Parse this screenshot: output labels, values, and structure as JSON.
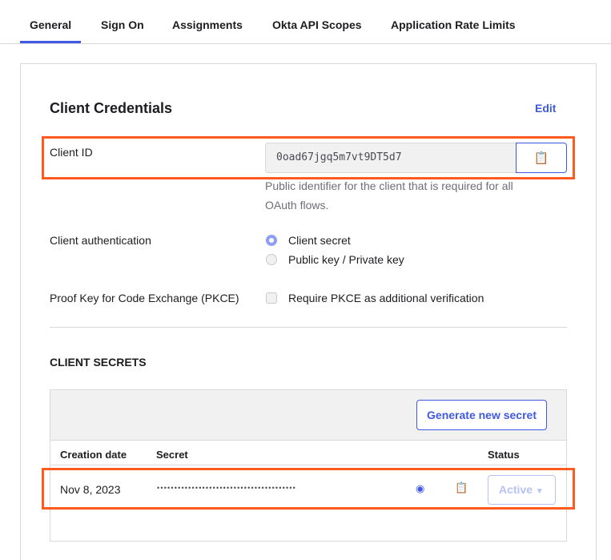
{
  "tabs": [
    {
      "label": "General",
      "active": true
    },
    {
      "label": "Sign On"
    },
    {
      "label": "Assignments"
    },
    {
      "label": "Okta API Scopes"
    },
    {
      "label": "Application Rate Limits"
    }
  ],
  "credentials": {
    "title": "Client Credentials",
    "edit_label": "Edit",
    "client_id_label": "Client ID",
    "client_id_value": "0oad67jgq5m7vt9DT5d7",
    "copy_icon": "clipboard-icon",
    "client_id_help": "Public identifier for the client that is required for all OAuth flows.",
    "auth_label": "Client authentication",
    "auth_options": [
      {
        "label": "Client secret",
        "selected": true
      },
      {
        "label": "Public key / Private key",
        "selected": false
      }
    ],
    "pkce_label": "Proof Key for Code Exchange (PKCE)",
    "pkce_option": "Require PKCE as additional verification",
    "pkce_checked": false
  },
  "secrets": {
    "title": "CLIENT SECRETS",
    "generate_label": "Generate new secret",
    "columns": [
      "Creation date",
      "Secret",
      "Status"
    ],
    "rows": [
      {
        "date": "Nov 8, 2023",
        "secret": "••••••••••••••••••••••••••••••••••••••••",
        "status": "Active"
      }
    ]
  },
  "colors": {
    "accent": "#3f59e4",
    "highlight": "#ff5a1f"
  }
}
